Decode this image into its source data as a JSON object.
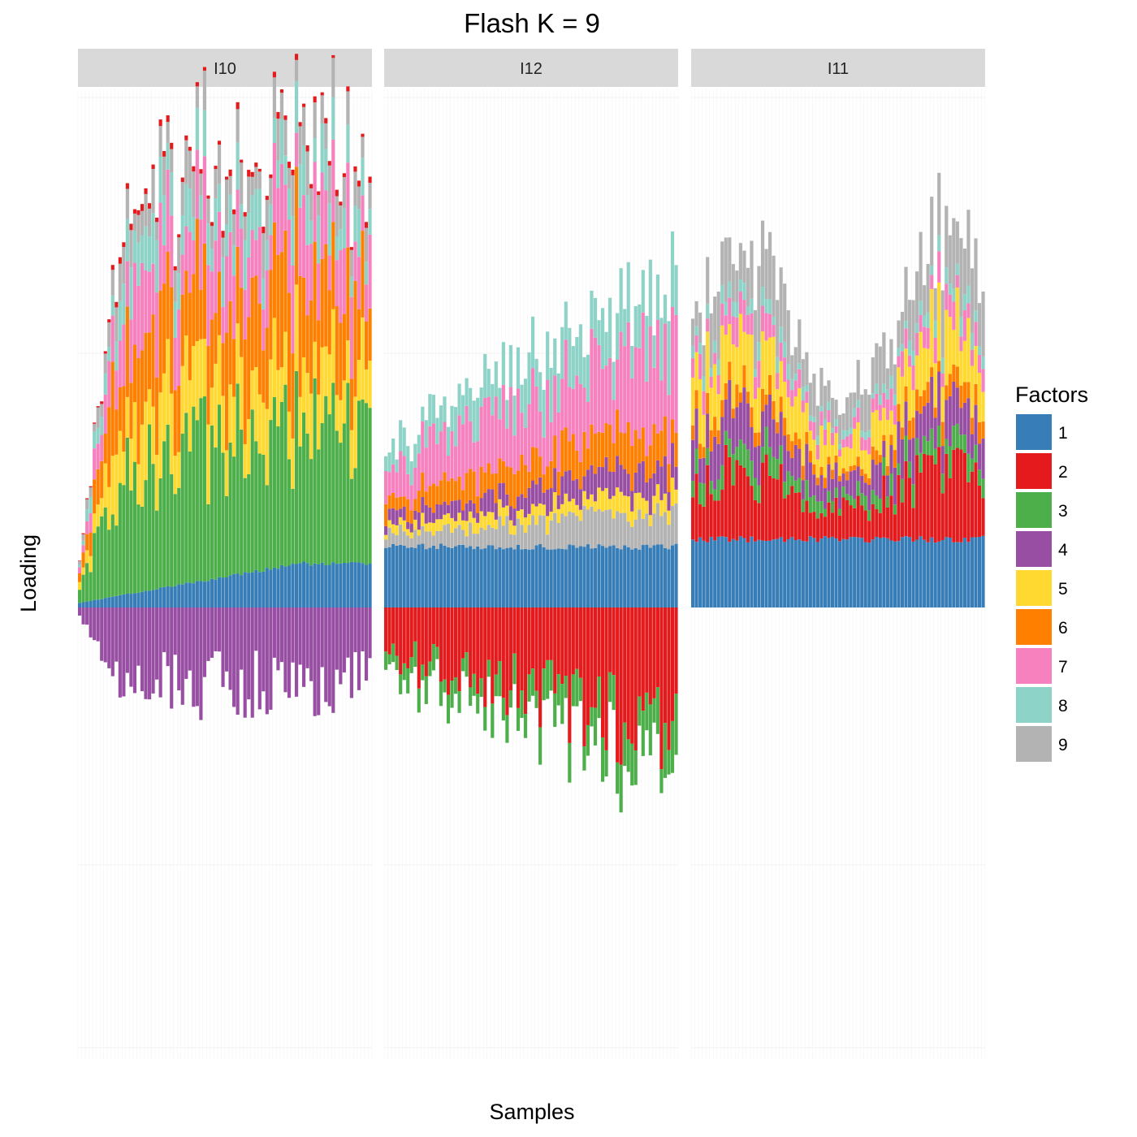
{
  "chart_data": {
    "type": "bar",
    "stacking": "diverging (positive loadings stacked above zero, negative below)",
    "title": "Flash K = 9",
    "xlabel": "Samples",
    "ylabel": "Loading",
    "grid": true,
    "x_tick_labels_shown": false,
    "y_tick_labels_shown": false,
    "legend": {
      "title": "Factors",
      "position": "right",
      "entries": [
        {
          "name": "1",
          "color": "#377EB8"
        },
        {
          "name": "2",
          "color": "#E41A1C"
        },
        {
          "name": "3",
          "color": "#4DAF4A"
        },
        {
          "name": "4",
          "color": "#984EA3"
        },
        {
          "name": "5",
          "color": "#FFD92F"
        },
        {
          "name": "6",
          "color": "#FF7F00"
        },
        {
          "name": "7",
          "color": "#F781BF"
        },
        {
          "name": "8",
          "color": "#8DD3C7"
        },
        {
          "name": "9",
          "color": "#B3B3B3"
        }
      ]
    },
    "facets": [
      {
        "label": "I10",
        "n_samples": 80,
        "factor_order": [
          "1",
          "3",
          "5",
          "6",
          "7",
          "8",
          "9",
          "4",
          "2"
        ],
        "mean_loading_per_factor": {
          "1": 0.18,
          "2": 0.02,
          "3": 0.55,
          "4": -0.32,
          "5": 0.25,
          "6": 0.35,
          "7": 0.25,
          "8": 0.15,
          "9": 0.13
        }
      },
      {
        "label": "I12",
        "n_samples": 80,
        "factor_order": [
          "1",
          "9",
          "5",
          "4",
          "6",
          "7",
          "8",
          "2",
          "3"
        ],
        "mean_loading_per_factor": {
          "1": 0.25,
          "2": -0.35,
          "3": -0.12,
          "4": 0.08,
          "5": 0.06,
          "6": 0.12,
          "7": 0.25,
          "8": 0.15,
          "9": 0.1
        }
      },
      {
        "label": "I11",
        "n_samples": 80,
        "factor_order": [
          "1",
          "2",
          "3",
          "4",
          "6",
          "5",
          "7",
          "8",
          "9"
        ],
        "mean_loading_per_factor": {
          "1": 0.28,
          "2": 0.24,
          "3": 0.08,
          "4": 0.15,
          "5": 0.2,
          "6": 0.06,
          "7": 0.08,
          "8": 0.05,
          "9": 0.2
        }
      }
    ]
  }
}
